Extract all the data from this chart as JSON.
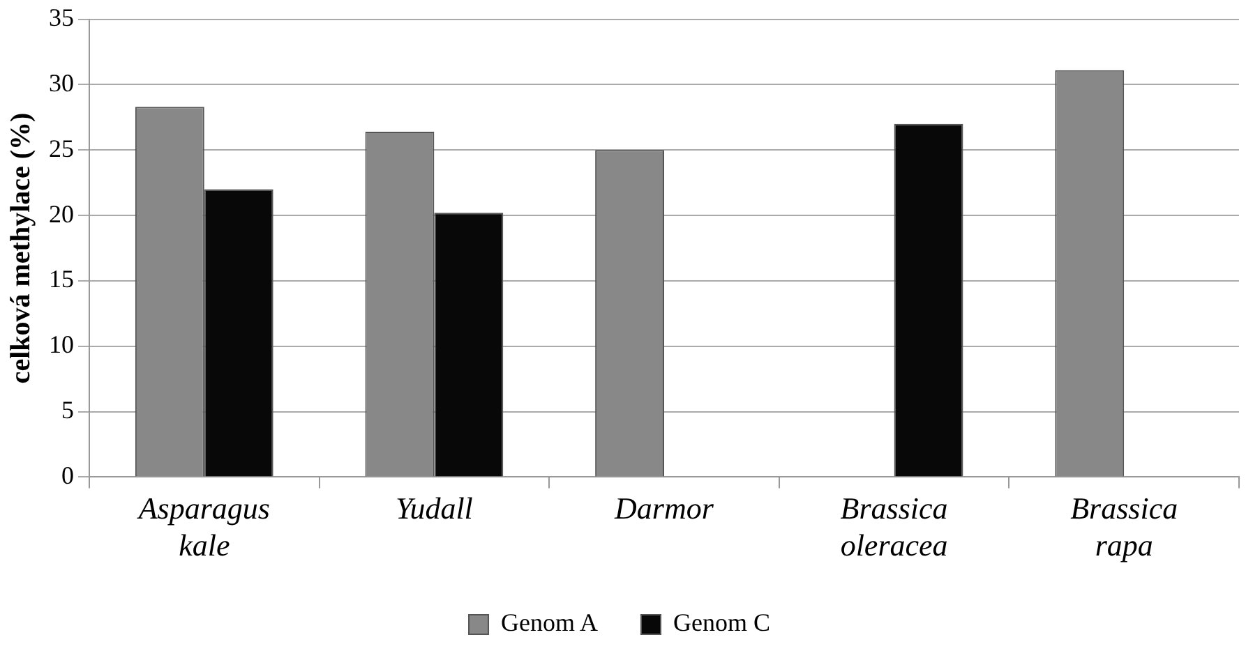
{
  "chart_data": {
    "type": "bar",
    "ylabel": "celková methylace (%)",
    "categories": [
      "Asparagus kale",
      "Yudall",
      "Darmor",
      "Brassica oleracea",
      "Brassica rapa"
    ],
    "series": [
      {
        "name": "Genom A",
        "color": "#888888",
        "values": [
          28.3,
          26.4,
          25,
          null,
          31.1
        ]
      },
      {
        "name": "Genom C",
        "color": "#080808",
        "values": [
          22,
          20.2,
          null,
          27,
          null
        ]
      }
    ],
    "ylim": [
      0,
      35
    ],
    "yticks": [
      0,
      5,
      10,
      15,
      20,
      25,
      30,
      35
    ],
    "grid": "y",
    "legend": "bottom"
  }
}
